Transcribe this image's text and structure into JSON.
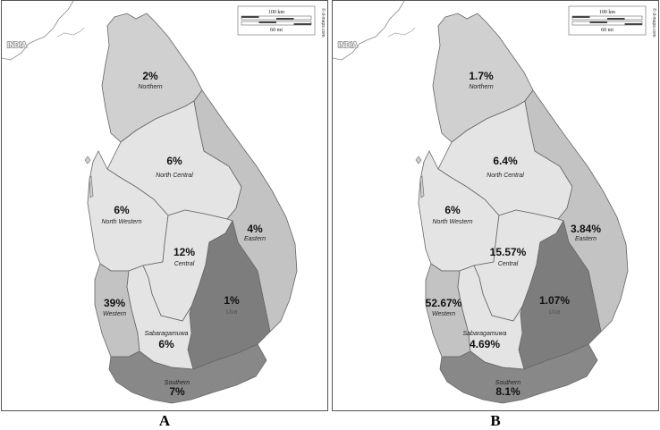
{
  "colors": {
    "light": "#e4e4e4",
    "mid": "#d0d0d0",
    "shade": "#c3c3c3",
    "dark": "#7d7d7d",
    "darker": "#888888"
  },
  "scale_bar": {
    "km": "100 km",
    "mi": "60 mi"
  },
  "credit": "© d-maps.com",
  "country_label": "INDIA",
  "panels": [
    {
      "label": "A",
      "regions": [
        {
          "key": "northern",
          "name": "Northern",
          "value": "2%"
        },
        {
          "key": "north_central",
          "name": "North Central",
          "value": "6%"
        },
        {
          "key": "north_western",
          "name": "North Western",
          "value": "6%"
        },
        {
          "key": "eastern",
          "name": "Eastern",
          "value": "4%"
        },
        {
          "key": "central",
          "name": "Central",
          "value": "12%"
        },
        {
          "key": "uva",
          "name": "Uva",
          "value": "1%"
        },
        {
          "key": "western",
          "name": "Western",
          "value": "39%"
        },
        {
          "key": "sabaragamuwa",
          "name": "Sabaragamuwa",
          "value": "6%"
        },
        {
          "key": "southern",
          "name": "Southern",
          "value": "7%"
        }
      ]
    },
    {
      "label": "B",
      "regions": [
        {
          "key": "northern",
          "name": "Northern",
          "value": "1.7%"
        },
        {
          "key": "north_central",
          "name": "North Central",
          "value": "6.4%"
        },
        {
          "key": "north_western",
          "name": "North Western",
          "value": "6%"
        },
        {
          "key": "eastern",
          "name": "Eastern",
          "value": "3.84%"
        },
        {
          "key": "central",
          "name": "Central",
          "value": "15.57%"
        },
        {
          "key": "uva",
          "name": "Uva",
          "value": "1.07%"
        },
        {
          "key": "western",
          "name": "Western",
          "value": "52.67%"
        },
        {
          "key": "sabaragamuwa",
          "name": "Sabaragamuwa",
          "value": "4.69%"
        },
        {
          "key": "southern",
          "name": "Southern",
          "value": "8.1%"
        }
      ]
    }
  ]
}
